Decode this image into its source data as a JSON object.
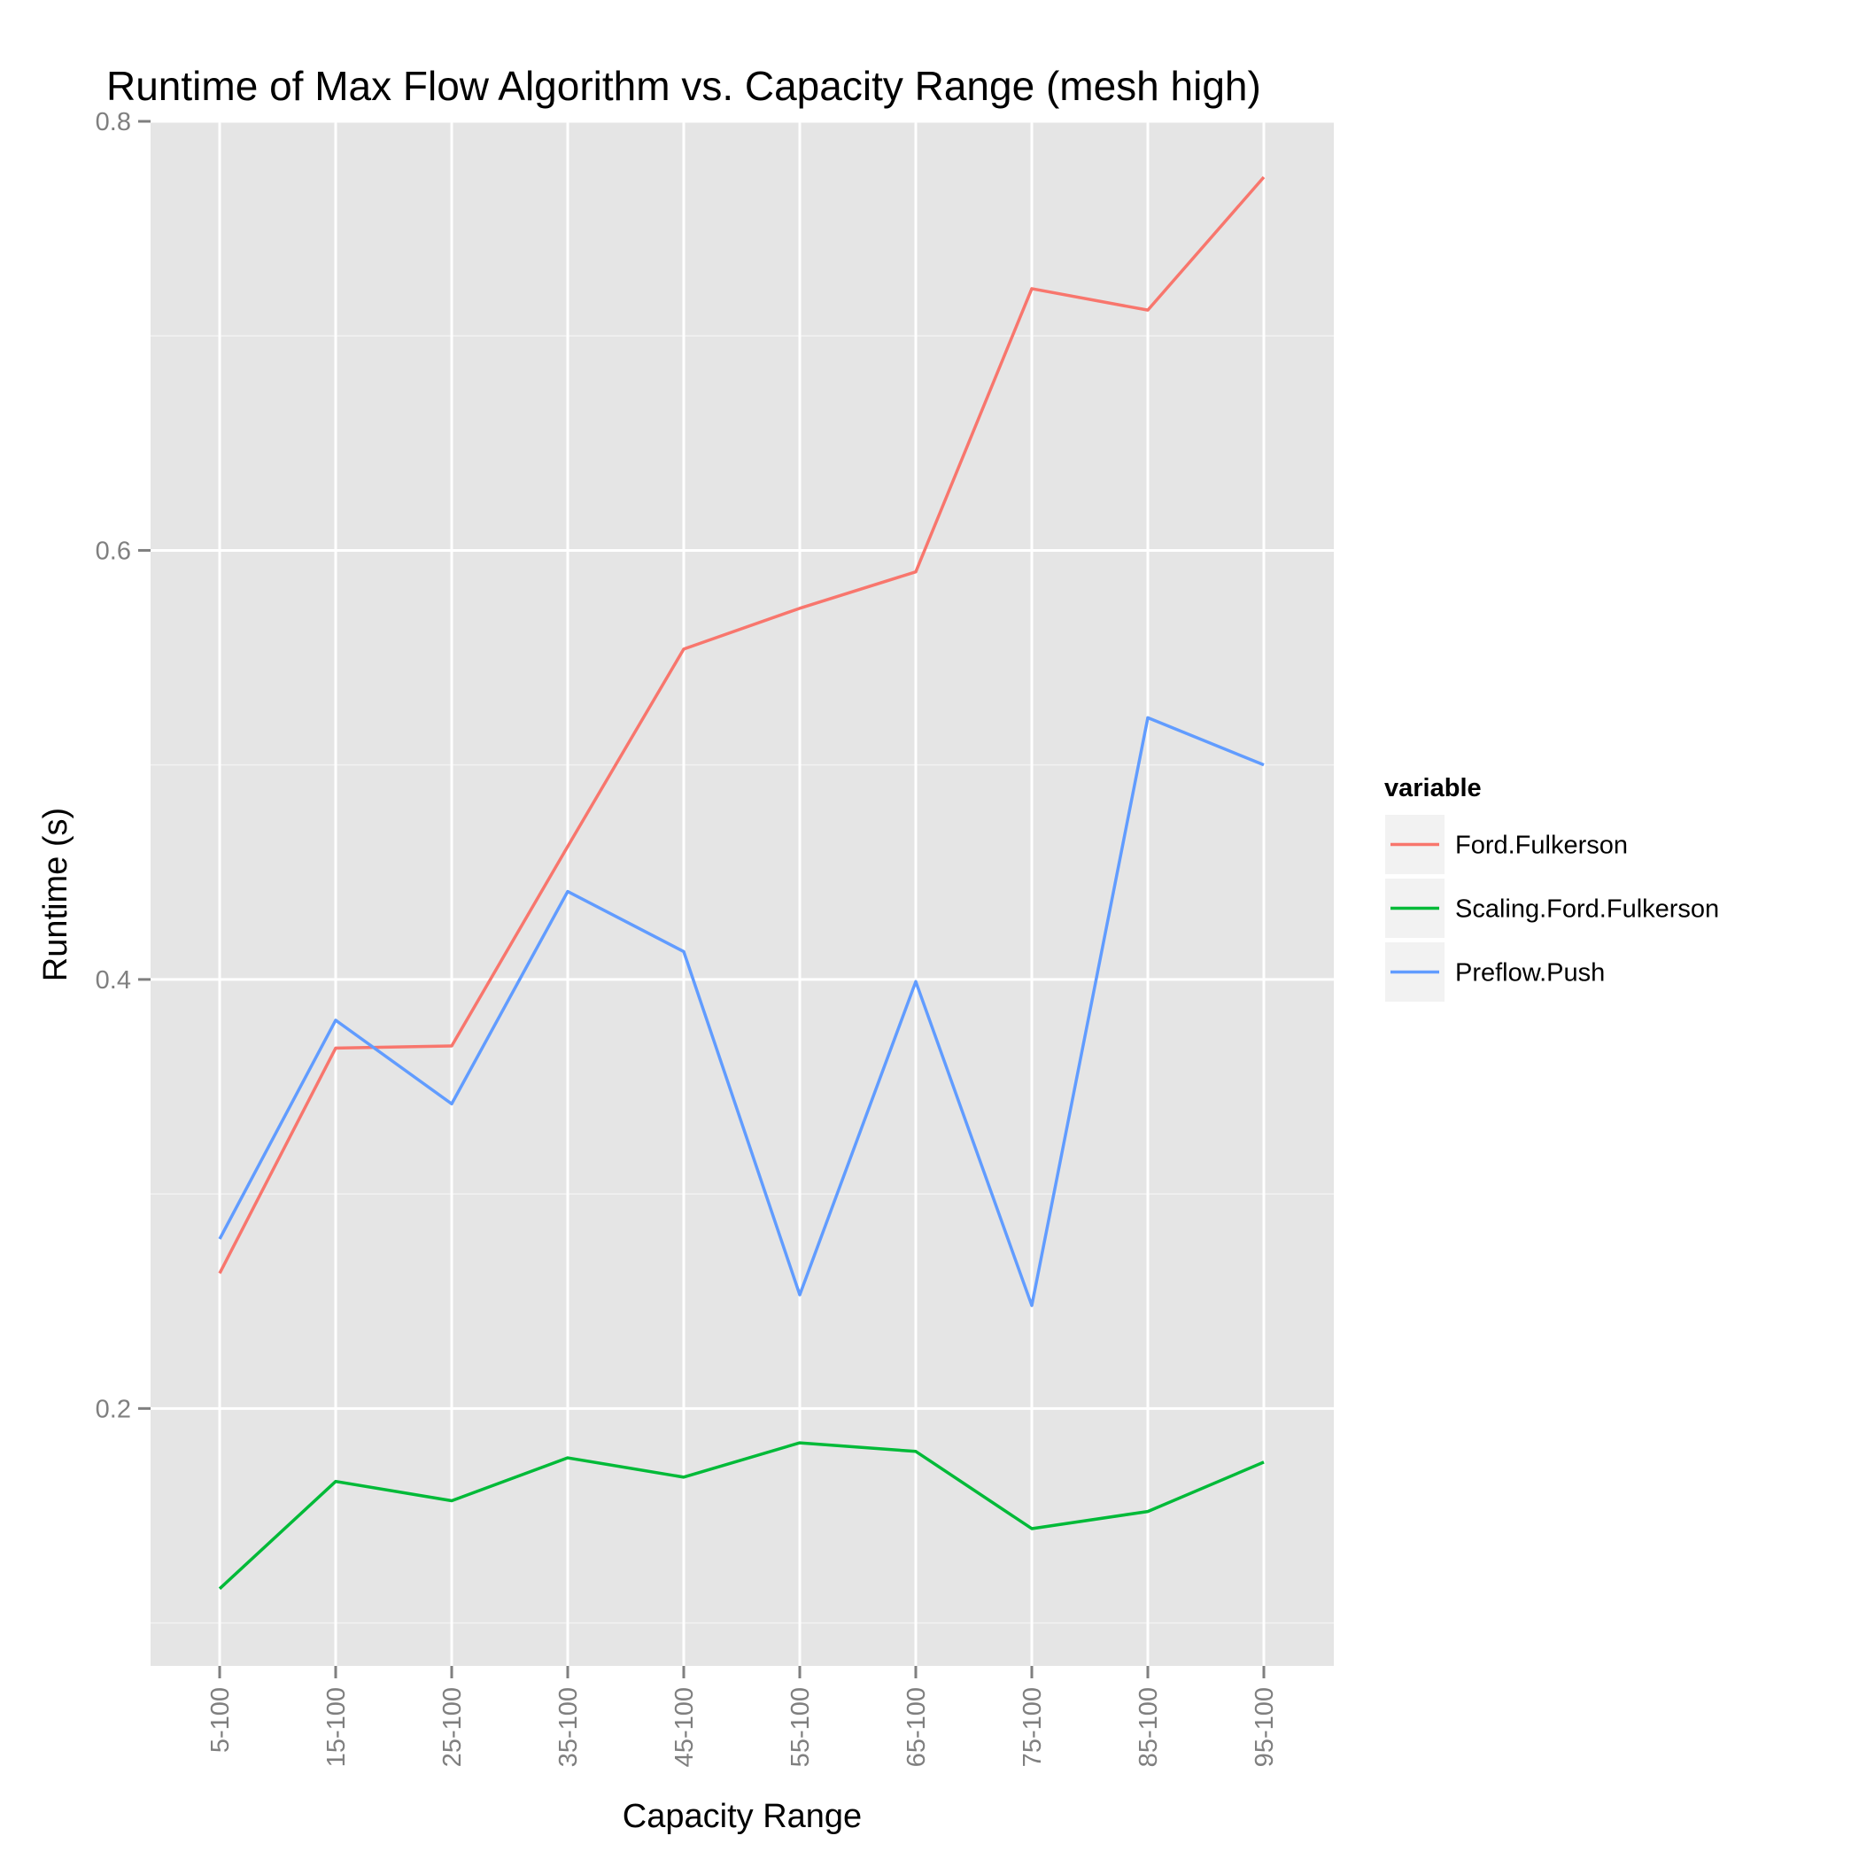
{
  "chart_data": {
    "type": "line",
    "title": "Runtime of Max Flow Algorithm vs. Capacity Range (mesh high)",
    "xlabel": "Capacity Range",
    "ylabel": "Runtime (s)",
    "categories": [
      "5-100",
      "15-100",
      "25-100",
      "35-100",
      "45-100",
      "55-100",
      "65-100",
      "75-100",
      "85-100",
      "95-100"
    ],
    "ylim": [
      0.08,
      0.8
    ],
    "yticks": [
      0.2,
      0.4,
      0.6,
      0.8
    ],
    "ytick_labels": [
      "0.2",
      "0.4",
      "0.6",
      "0.8"
    ],
    "y_minor_ticks": [
      0.1,
      0.3,
      0.5,
      0.7
    ],
    "grid": true,
    "legend_position": "right",
    "legend_title": "variable",
    "series": [
      {
        "name": "Ford.Fulkerson",
        "color": "#F8766D",
        "values": [
          0.263,
          0.368,
          0.369,
          0.462,
          0.554,
          0.573,
          0.59,
          0.722,
          0.712,
          0.774
        ]
      },
      {
        "name": "Scaling.Ford.Fulkerson",
        "color": "#00BA38",
        "values": [
          0.116,
          0.166,
          0.157,
          0.177,
          0.168,
          0.184,
          0.18,
          0.144,
          0.152,
          0.175
        ]
      },
      {
        "name": "Preflow.Push",
        "color": "#619CFF",
        "values": [
          0.279,
          0.381,
          0.342,
          0.441,
          0.413,
          0.253,
          0.399,
          0.248,
          0.522,
          0.5
        ]
      }
    ]
  },
  "colors": {
    "panel_background": "#E5E5E5",
    "grid_major": "#FFFFFF",
    "grid_minor": "#F2F2F2",
    "tick_mark": "#7F7F7F",
    "legend_key_background": "#F2F2F2"
  }
}
